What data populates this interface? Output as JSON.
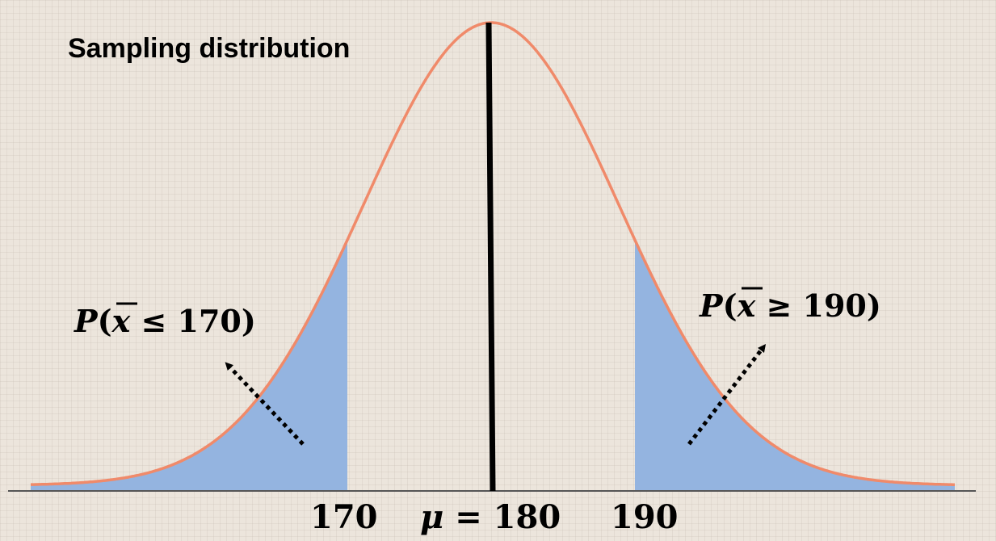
{
  "title": "Sampling distribution",
  "left_prob": {
    "P": "P",
    "open": "(",
    "var": "x",
    "op": " ≤ ",
    "value": "170",
    "close": ")"
  },
  "right_prob": {
    "P": "P",
    "open": "(",
    "var": "x",
    "op": " ≥ ",
    "value": "190",
    "close": ")"
  },
  "axis_labels": {
    "left": "170",
    "mu": "μ",
    "mu_eq": " = ",
    "center": "180",
    "right": "190"
  },
  "distribution": {
    "mean": 180,
    "lower_cut": 170,
    "upper_cut": 190
  },
  "colors": {
    "curve": "#f08a6a",
    "shade": "#94b4e0",
    "axis": "#555555",
    "mean_line": "#000000",
    "arrow": "#000000"
  }
}
